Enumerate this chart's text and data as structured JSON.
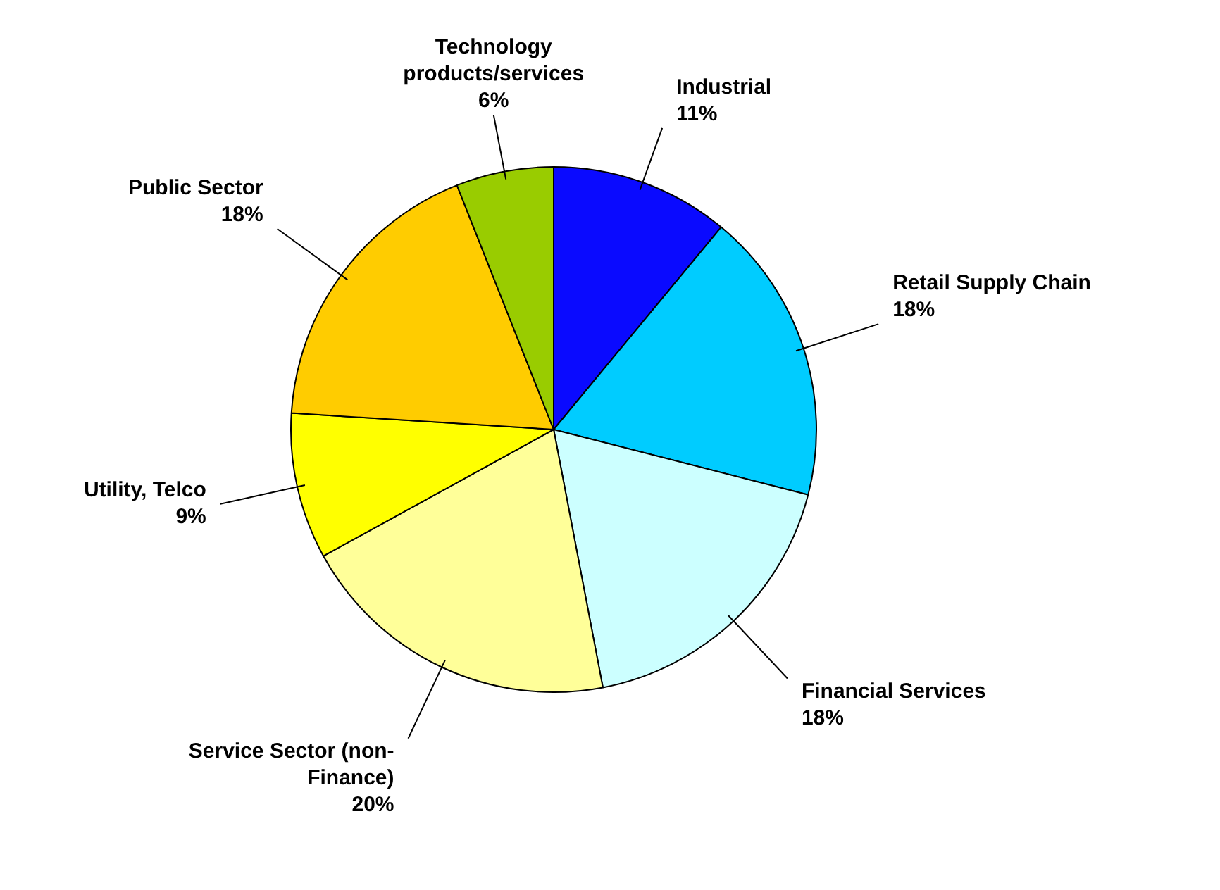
{
  "chart_data": {
    "type": "pie",
    "categories": [
      "Industrial",
      "Retail Supply Chain",
      "Financial Services",
      "Service Sector (non-Finance)",
      "Utility, Telco",
      "Public Sector",
      "Technology products/services"
    ],
    "values": [
      11,
      18,
      18,
      20,
      9,
      18,
      6
    ],
    "colors": [
      "#0a0aff",
      "#00ccff",
      "#ccffff",
      "#ffff99",
      "#ffff00",
      "#ffcc00",
      "#99cc00"
    ],
    "value_labels": [
      "11%",
      "18%",
      "18%",
      "20%",
      "9%",
      "18%",
      "6%"
    ],
    "legend": false
  }
}
